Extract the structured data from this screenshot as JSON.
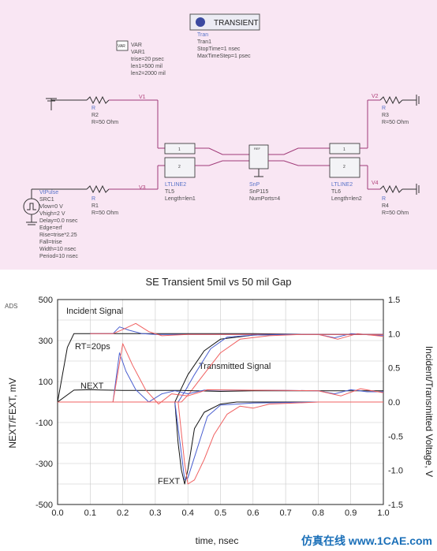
{
  "schematic": {
    "transient_button_label": "TRANSIENT",
    "tran": {
      "line1": "Tran",
      "line2": "Tran1",
      "line3": "StopTime=1 nsec",
      "line4": "MaxTimeStep=1 psec"
    },
    "var": {
      "icon_text": "VAR",
      "line1": "VAR",
      "line2": "VAR1",
      "line3": "trise=20 psec",
      "line4": "len1=500 mil",
      "line5": "len2=2000 mil"
    },
    "r2": {
      "type": "R",
      "name": "R2",
      "value": "R=50 Ohm"
    },
    "r1": {
      "type": "R",
      "name": "R1",
      "value": "R=50 Ohm"
    },
    "r3": {
      "type": "R",
      "name": "R3",
      "value": "R=50 Ohm"
    },
    "r4": {
      "type": "R",
      "name": "R4",
      "value": "R=50 Ohm"
    },
    "nodes": {
      "v1": "V1",
      "v2": "V2",
      "v3": "V3",
      "v4": "V4"
    },
    "tl5": {
      "type": "LTLINE2",
      "name": "TL5",
      "param": "Length=len1"
    },
    "tl6": {
      "type": "LTLINE2",
      "name": "TL6",
      "param": "Length=len2"
    },
    "snp": {
      "type": "SnP",
      "name": "SnP115",
      "param": "NumPorts=4"
    },
    "pins": {
      "one": "1",
      "two": "2"
    },
    "src": {
      "lines": [
        "VtPulse",
        "SRC1",
        "Vlow=0 V",
        "Vhigh=2 V",
        "Delay=0.0 nsec",
        "Edge=erf",
        "Rise=trise*2.25",
        "Fall=trise",
        "Width=10 nsec",
        "Period=10 nsec"
      ]
    }
  },
  "plot": {
    "ads_label": "ADS",
    "watermark": "仿真在线 www.1CAE.com"
  },
  "chart_data": {
    "type": "line",
    "title": "SE Transient 5mil vs 50 mil Gap",
    "xlabel": "time, nsec",
    "ylabel": "NEXT/FEXT, mV",
    "y2label": "Incident/Transmitted Voltage, V",
    "xlim": [
      0.0,
      1.0
    ],
    "ylim": [
      -500,
      500
    ],
    "y2lim": [
      -1.5,
      1.5
    ],
    "xticks": [
      "0.0",
      "0.1",
      "0.2",
      "0.3",
      "0.4",
      "0.5",
      "0.6",
      "0.7",
      "0.8",
      "0.9",
      "1.0"
    ],
    "yticks": [
      "500",
      "300",
      "100",
      "-100",
      "-300",
      "-500"
    ],
    "y2ticks": [
      "1.5",
      "1.0",
      "0.5",
      "0.0",
      "-0.5",
      "-1.0",
      "-1.5"
    ],
    "grid": true,
    "annotations": [
      "Incident Signal",
      "RT=20ps",
      "Transmitted Signal",
      "NEXT",
      "FEXT"
    ],
    "colors": {
      "black": "#111111",
      "blue": "#4a5fd0",
      "red": "#f06060"
    },
    "series": [
      {
        "axis": "right",
        "color": "#111111",
        "x": [
          0,
          0.03,
          0.05,
          0.1,
          0.2,
          0.36,
          0.4,
          0.45,
          0.5,
          0.6,
          0.8,
          1.0
        ],
        "y": [
          0,
          0.8,
          1.0,
          1.0,
          1.0,
          1.0,
          1.0,
          1.0,
          1.0,
          1.0,
          0.99,
          0.99
        ]
      },
      {
        "axis": "right",
        "color": "#4a5fd0",
        "x": [
          0.1,
          0.17,
          0.19,
          0.22,
          0.26,
          0.3,
          0.4,
          0.6,
          0.8,
          0.85,
          0.9,
          1.0
        ],
        "y": [
          1.0,
          1.0,
          1.1,
          1.05,
          1.0,
          0.99,
          0.99,
          0.99,
          0.99,
          0.94,
          1.0,
          0.97
        ]
      },
      {
        "axis": "right",
        "color": "#f06060",
        "x": [
          0.1,
          0.17,
          0.2,
          0.24,
          0.28,
          0.32,
          0.4,
          0.6,
          0.8,
          0.86,
          0.92,
          1.0
        ],
        "y": [
          1.0,
          1.0,
          1.06,
          1.15,
          1.03,
          0.97,
          0.99,
          0.99,
          0.99,
          0.92,
          1.0,
          0.96
        ]
      },
      {
        "axis": "right",
        "color": "#111111",
        "x": [
          0,
          0.36,
          0.38,
          0.4,
          0.45,
          0.5,
          0.6,
          0.7,
          1.0
        ],
        "y": [
          0,
          0,
          0.2,
          0.4,
          0.75,
          0.92,
          0.98,
          0.99,
          0.99
        ]
      },
      {
        "axis": "right",
        "color": "#4a5fd0",
        "x": [
          0,
          0.37,
          0.39,
          0.42,
          0.47,
          0.52,
          0.6,
          0.7,
          1.0
        ],
        "y": [
          0,
          0,
          0.15,
          0.4,
          0.78,
          0.95,
          0.98,
          0.99,
          0.99
        ]
      },
      {
        "axis": "right",
        "color": "#f06060",
        "x": [
          0,
          0.38,
          0.4,
          0.44,
          0.5,
          0.56,
          0.65,
          0.75,
          1.0
        ],
        "y": [
          0,
          0,
          0.1,
          0.35,
          0.72,
          0.92,
          0.97,
          0.99,
          0.99
        ]
      },
      {
        "axis": "left",
        "color": "#111111",
        "x": [
          0,
          0.05,
          0.1,
          0.15,
          0.2,
          0.36,
          0.38,
          0.42,
          0.5,
          0.6,
          1.0
        ],
        "y": [
          0,
          58,
          60,
          58,
          57,
          57,
          57,
          55,
          52,
          55,
          55
        ]
      },
      {
        "axis": "left",
        "color": "#4a5fd0",
        "x": [
          0,
          0.17,
          0.19,
          0.21,
          0.24,
          0.28,
          0.32,
          0.36,
          0.4,
          0.45,
          0.55,
          0.7,
          0.8,
          0.85,
          0.9,
          0.95,
          1.0
        ],
        "y": [
          0,
          0,
          240,
          150,
          60,
          0,
          40,
          55,
          40,
          58,
          58,
          57,
          55,
          40,
          60,
          50,
          50
        ]
      },
      {
        "axis": "left",
        "color": "#f06060",
        "x": [
          0,
          0.17,
          0.2,
          0.23,
          0.27,
          0.31,
          0.35,
          0.4,
          0.46,
          0.55,
          0.7,
          0.8,
          0.87,
          0.93,
          1.0
        ],
        "y": [
          0,
          0,
          285,
          180,
          60,
          -10,
          40,
          30,
          60,
          58,
          57,
          55,
          30,
          65,
          45
        ]
      },
      {
        "axis": "left",
        "color": "#111111",
        "x": [
          0,
          0.36,
          0.37,
          0.38,
          0.39,
          0.4,
          0.42,
          0.45,
          0.5,
          0.55,
          0.6,
          0.8,
          1.0
        ],
        "y": [
          0,
          0,
          -200,
          -330,
          -400,
          -330,
          -130,
          -50,
          -10,
          0,
          0,
          0,
          0
        ]
      },
      {
        "axis": "left",
        "color": "#4a5fd0",
        "x": [
          0,
          0.36,
          0.38,
          0.39,
          0.4,
          0.43,
          0.46,
          0.5,
          0.55,
          0.6,
          0.8,
          1.0
        ],
        "y": [
          0,
          0,
          -250,
          -380,
          -370,
          -220,
          -70,
          -15,
          -10,
          -5,
          0,
          0
        ]
      },
      {
        "axis": "left",
        "color": "#f06060",
        "x": [
          0,
          0.37,
          0.39,
          0.4,
          0.42,
          0.45,
          0.48,
          0.52,
          0.56,
          0.6,
          0.65,
          0.8,
          1.0
        ],
        "y": [
          0,
          0,
          -300,
          -400,
          -380,
          -280,
          -160,
          -60,
          -20,
          -30,
          -10,
          0,
          0
        ]
      }
    ]
  }
}
